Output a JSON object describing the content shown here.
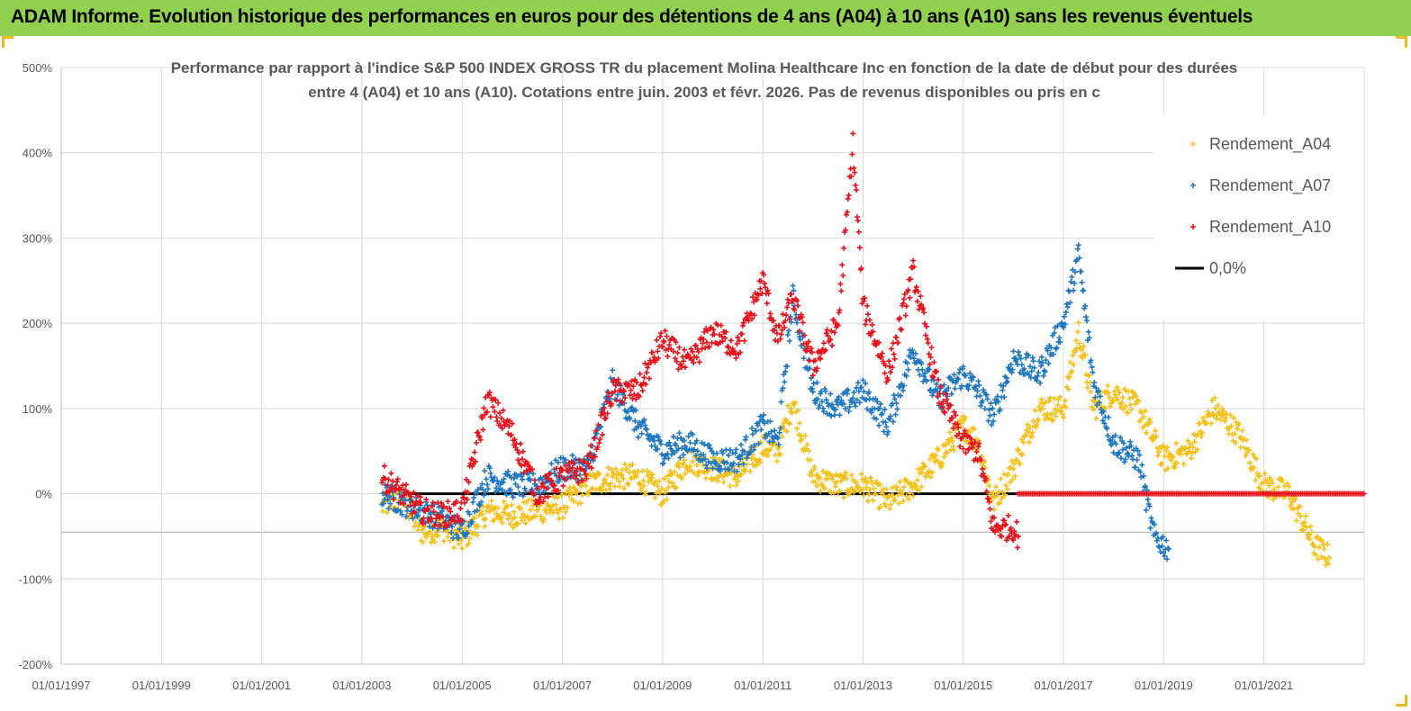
{
  "header": {
    "title": "ADAM Informe. Evolution historique des performances en euros pour des détentions de 4 ans (A04) à 10 ans (A10) sans les revenus éventuels"
  },
  "chart_data": {
    "type": "scatter",
    "title_lines": [
      "Performance par rapport à l'indice S&P 500 INDEX GROSS TR  du placement Molina Healthcare Inc en fonction de la date de début pour des durées",
      "entre 4 (A04) et 10 ans (A10). Cotations entre juin. 2003 et févr. 2026. Pas de revenus disponibles ou pris en c"
    ],
    "xlabel": "",
    "ylabel": "",
    "xlim": [
      1997.0,
      2023.0
    ],
    "ylim": [
      -200,
      500
    ],
    "y_ticks": [
      500,
      400,
      300,
      200,
      100,
      0,
      -100,
      -200
    ],
    "y_tick_labels": [
      "500%",
      "400%",
      "300%",
      "200%",
      "100%",
      "0%",
      "-100%",
      "-200%"
    ],
    "x_ticks": [
      1997,
      1999,
      2001,
      2003,
      2005,
      2007,
      2009,
      2011,
      2013,
      2015,
      2017,
      2019,
      2021
    ],
    "x_tick_labels": [
      "01/01/1997",
      "01/01/1999",
      "01/01/2001",
      "01/01/2003",
      "01/01/2005",
      "01/01/2007",
      "01/01/2009",
      "01/01/2011",
      "01/01/2013",
      "01/01/2015",
      "01/01/2017",
      "01/01/2019",
      "01/01/2021"
    ],
    "grid": true,
    "legend": {
      "position": "top-right",
      "entries": [
        {
          "label": "Rendement_A04",
          "marker": "+",
          "color": "#f5c01a"
        },
        {
          "label": "Rendement_A07",
          "marker": "+",
          "color": "#1f77c0"
        },
        {
          "label": "Rendement_A10",
          "marker": "+",
          "color": "#e8101a"
        },
        {
          "label": "0,0%",
          "marker": "line",
          "color": "#000000"
        }
      ]
    },
    "series": [
      {
        "name": "Rendement_A04",
        "color": "#f5c01a",
        "x": [
          2003.4,
          2003.8,
          2004.2,
          2004.6,
          2005.0,
          2005.5,
          2006.0,
          2006.5,
          2007.0,
          2007.5,
          2008.0,
          2008.5,
          2009.0,
          2009.5,
          2010.0,
          2010.5,
          2011.0,
          2011.3,
          2011.6,
          2012.0,
          2012.5,
          2013.0,
          2013.5,
          2014.0,
          2014.5,
          2015.0,
          2015.3,
          2015.6,
          2016.0,
          2016.5,
          2017.0,
          2017.3,
          2017.6,
          2018.0,
          2018.5,
          2019.0,
          2019.5,
          2020.0,
          2020.5,
          2021.0,
          2021.5,
          2022.0,
          2022.3
        ],
        "values": [
          -15,
          -5,
          -45,
          -40,
          -55,
          -20,
          -25,
          -20,
          -15,
          10,
          20,
          20,
          0,
          40,
          30,
          20,
          55,
          50,
          110,
          20,
          10,
          10,
          -10,
          10,
          40,
          80,
          60,
          -10,
          30,
          100,
          100,
          190,
          100,
          120,
          100,
          40,
          50,
          100,
          70,
          10,
          0,
          -60,
          -75
        ]
      },
      {
        "name": "Rendement_A07",
        "color": "#1f77c0",
        "x": [
          2003.4,
          2003.8,
          2004.2,
          2004.6,
          2005.0,
          2005.5,
          2006.0,
          2006.5,
          2007.0,
          2007.5,
          2008.0,
          2008.5,
          2009.0,
          2009.5,
          2010.0,
          2010.5,
          2011.0,
          2011.3,
          2011.6,
          2012.0,
          2012.5,
          2013.0,
          2013.5,
          2014.0,
          2014.5,
          2015.0,
          2015.3,
          2015.6,
          2016.0,
          2016.5,
          2017.0,
          2017.3,
          2017.6,
          2018.0,
          2018.5,
          2018.8,
          2019.0,
          2019.1
        ],
        "values": [
          0,
          -10,
          -20,
          -30,
          -45,
          20,
          10,
          10,
          30,
          30,
          130,
          80,
          50,
          60,
          40,
          40,
          80,
          60,
          230,
          120,
          100,
          120,
          80,
          170,
          110,
          140,
          120,
          90,
          160,
          140,
          200,
          280,
          130,
          60,
          40,
          -50,
          -60,
          -65
        ]
      },
      {
        "name": "Rendement_A10",
        "color": "#e8101a",
        "x": [
          2003.4,
          2003.8,
          2004.2,
          2004.6,
          2005.0,
          2005.5,
          2006.0,
          2006.5,
          2007.0,
          2007.5,
          2008.0,
          2008.5,
          2009.0,
          2009.5,
          2010.0,
          2010.5,
          2011.0,
          2011.3,
          2011.6,
          2012.0,
          2012.5,
          2012.8,
          2013.0,
          2013.5,
          2014.0,
          2014.5,
          2015.0,
          2015.3,
          2015.6,
          2016.0,
          2016.1
        ],
        "values": [
          20,
          0,
          -20,
          -25,
          -20,
          110,
          70,
          0,
          20,
          30,
          120,
          120,
          180,
          150,
          190,
          170,
          250,
          180,
          230,
          150,
          200,
          410,
          220,
          140,
          260,
          120,
          60,
          50,
          -40,
          -40,
          -50
        ]
      }
    ],
    "zero_line": {
      "label": "0,0%",
      "color": "#000000",
      "from": 2003.8,
      "to": 2016.1
    },
    "zero_band": {
      "color": "#e8101a",
      "from": 2016.1,
      "to": 2023.0
    }
  }
}
